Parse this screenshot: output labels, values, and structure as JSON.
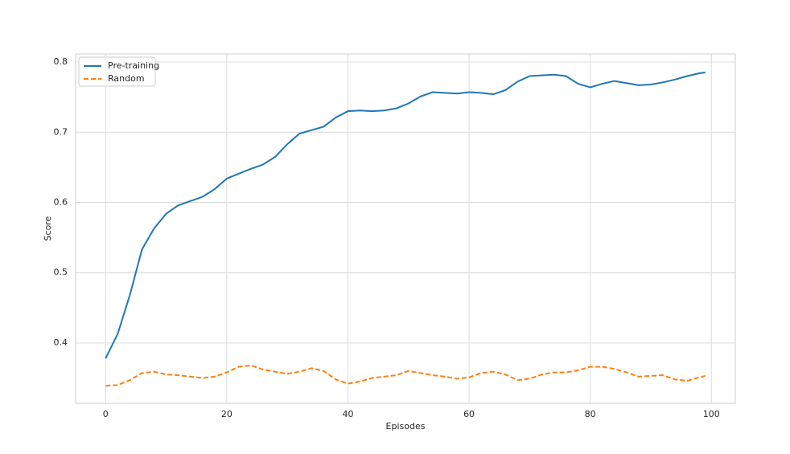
{
  "chart_data": {
    "type": "line",
    "x_label": "Episodes",
    "y_label": "Score",
    "x": [
      0,
      2,
      4,
      6,
      8,
      10,
      12,
      14,
      16,
      18,
      20,
      22,
      24,
      26,
      28,
      30,
      32,
      34,
      36,
      38,
      40,
      42,
      44,
      46,
      48,
      50,
      52,
      54,
      56,
      58,
      60,
      62,
      64,
      66,
      68,
      70,
      72,
      74,
      76,
      78,
      80,
      82,
      84,
      86,
      88,
      90,
      92,
      94,
      96,
      98,
      99
    ],
    "series": [
      {
        "name": "Pre-training",
        "color": "#1f77b4",
        "line_style": "solid",
        "values": [
          0.378,
          0.413,
          0.468,
          0.533,
          0.563,
          0.584,
          0.596,
          0.602,
          0.608,
          0.619,
          0.634,
          0.641,
          0.648,
          0.654,
          0.665,
          0.683,
          0.698,
          0.703,
          0.708,
          0.721,
          0.73,
          0.731,
          0.73,
          0.731,
          0.734,
          0.741,
          0.751,
          0.757,
          0.756,
          0.755,
          0.757,
          0.756,
          0.754,
          0.76,
          0.772,
          0.78,
          0.781,
          0.782,
          0.78,
          0.769,
          0.764,
          0.769,
          0.773,
          0.77,
          0.767,
          0.768,
          0.771,
          0.775,
          0.78,
          0.784,
          0.785
        ]
      },
      {
        "name": "Random",
        "color": "#ff7f0e",
        "line_style": "dashed",
        "values": [
          0.339,
          0.34,
          0.347,
          0.357,
          0.359,
          0.355,
          0.354,
          0.352,
          0.35,
          0.352,
          0.358,
          0.366,
          0.368,
          0.362,
          0.359,
          0.356,
          0.359,
          0.364,
          0.36,
          0.348,
          0.342,
          0.345,
          0.35,
          0.352,
          0.354,
          0.36,
          0.357,
          0.354,
          0.352,
          0.349,
          0.351,
          0.357,
          0.359,
          0.355,
          0.347,
          0.349,
          0.355,
          0.358,
          0.358,
          0.361,
          0.366,
          0.366,
          0.363,
          0.358,
          0.352,
          0.353,
          0.354,
          0.348,
          0.346,
          0.351,
          0.353
        ]
      }
    ],
    "xlim": [
      -4.95,
      103.95
    ],
    "xticks": [
      0,
      20,
      40,
      60,
      80,
      100
    ],
    "ylim": [
      0.314,
      0.8115
    ],
    "yticks": [
      0.4,
      0.5,
      0.6,
      0.7,
      0.8
    ],
    "grid": true,
    "legend_position": "upper left"
  }
}
